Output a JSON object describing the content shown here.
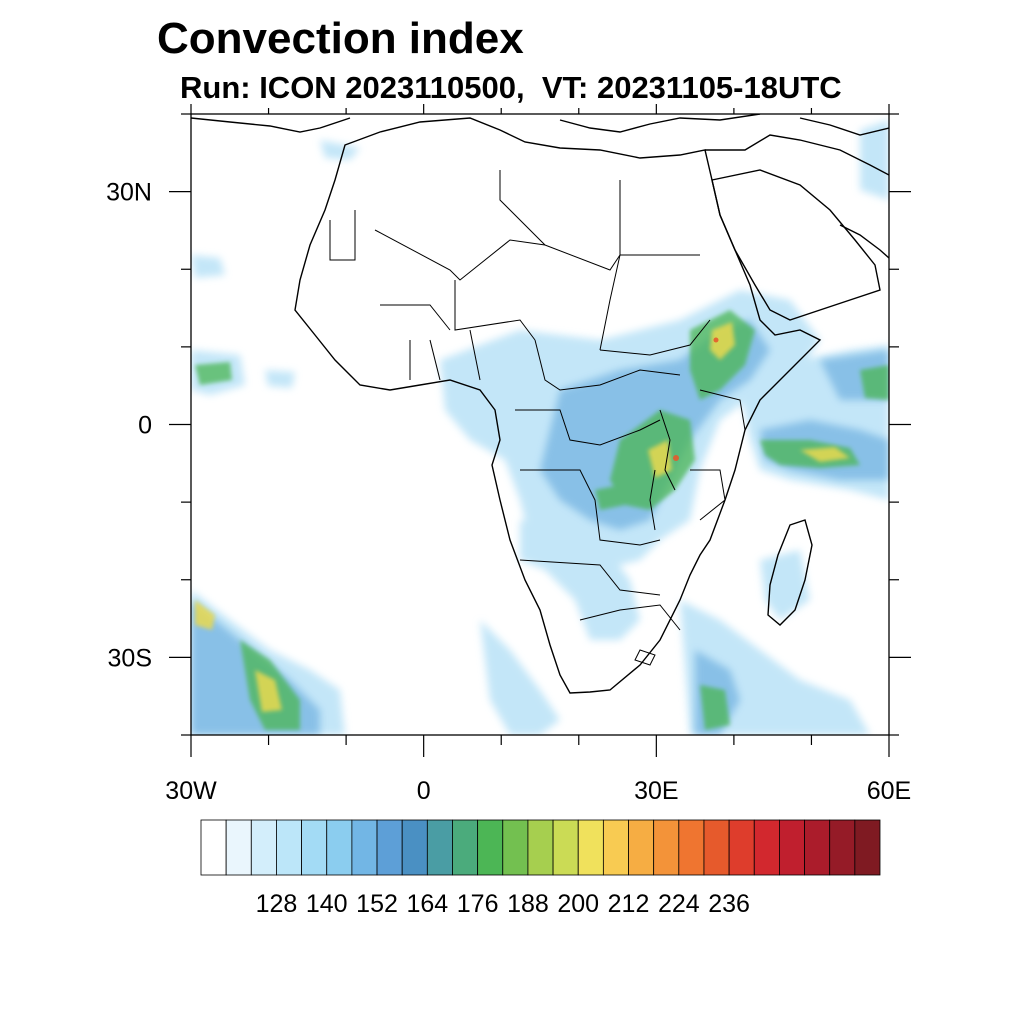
{
  "title": "Convection index",
  "subtitle": "Run: ICON 2023110500,  VT: 20231105-18UTC",
  "chart_data": {
    "type": "heatmap",
    "region": "Africa",
    "title": "Convection index",
    "subtitle": "Run: ICON 2023110500,  VT: 20231105-18UTC",
    "lon_range": [
      -30,
      60
    ],
    "lat_range": [
      -40,
      40
    ],
    "x_ticks": [
      {
        "value": -30,
        "label": "30W"
      },
      {
        "value": 0,
        "label": "0"
      },
      {
        "value": 30,
        "label": "30E"
      },
      {
        "value": 60,
        "label": "60E"
      }
    ],
    "y_ticks": [
      {
        "value": 30,
        "label": "30N"
      },
      {
        "value": 0,
        "label": "0"
      },
      {
        "value": -30,
        "label": "30S"
      }
    ],
    "colorbar": {
      "labels": [
        "128",
        "140",
        "152",
        "164",
        "176",
        "188",
        "200",
        "212",
        "224",
        "236"
      ],
      "colors": [
        "#ffffff",
        "#eaf6fd",
        "#d3eefb",
        "#bce6f9",
        "#a3dbf5",
        "#8bcdef",
        "#72b6e5",
        "#5d9fd7",
        "#4a90c3",
        "#4a9da4",
        "#4bab7c",
        "#4cb655",
        "#73c050",
        "#a6cf4f",
        "#cbdb55",
        "#f0e15c",
        "#f8cb52",
        "#f6ad43",
        "#f39339",
        "#ef7530",
        "#e65a2c",
        "#de3d2c",
        "#d2282e",
        "#c01f2e",
        "#ab1c2b",
        "#951b27",
        "#7f1a22"
      ]
    }
  }
}
